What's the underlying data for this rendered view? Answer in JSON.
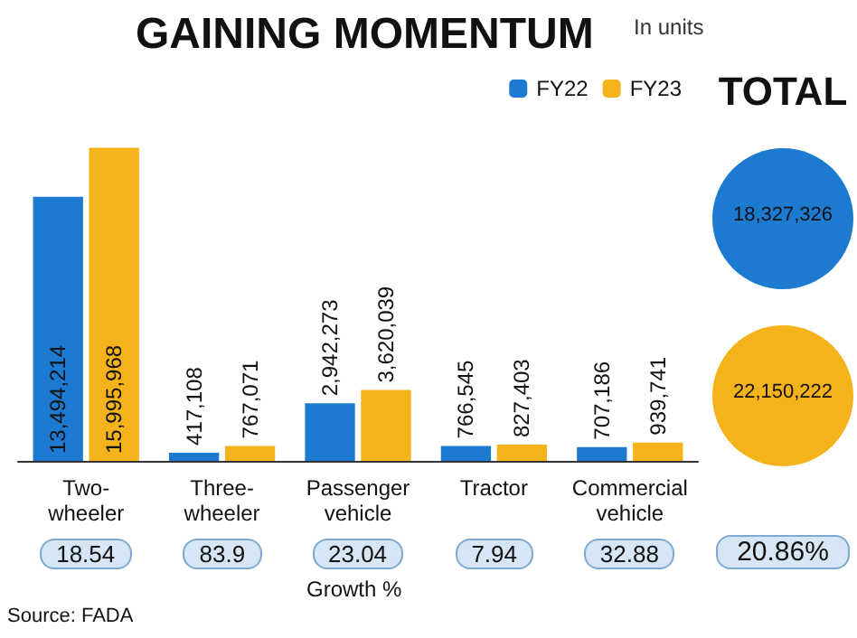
{
  "chart_data": [
    {
      "type": "bar",
      "title": "GAINING MOMENTUM",
      "categories": [
        "Two-wheeler",
        "Three-wheeler",
        "Passenger vehicle",
        "Tractor",
        "Commercial vehicle"
      ],
      "series": [
        {
          "name": "FY22",
          "color": "#1c7bd0",
          "values": [
            13494214,
            417108,
            2942273,
            766545,
            707186
          ],
          "value_labels": [
            "13,494,214",
            "417,108",
            "2,942,273",
            "766,545",
            "707,186"
          ]
        },
        {
          "name": "FY23",
          "color": "#f4b21b",
          "values": [
            15995968,
            767071,
            3620039,
            827403,
            939741
          ],
          "value_labels": [
            "15,995,968",
            "767,071",
            "3,620,039",
            "827,403",
            "939,741"
          ]
        }
      ],
      "legend": "top right",
      "annotations": [
        "In units",
        "18.54",
        "83.9",
        "23.04",
        "7.94",
        "32.88",
        "Growth %",
        "Source: FADA"
      ]
    },
    {
      "type": "other",
      "title": "TOTAL",
      "annotations": [
        "18,327,326",
        "22,150,222",
        "20.86%"
      ]
    }
  ]
}
